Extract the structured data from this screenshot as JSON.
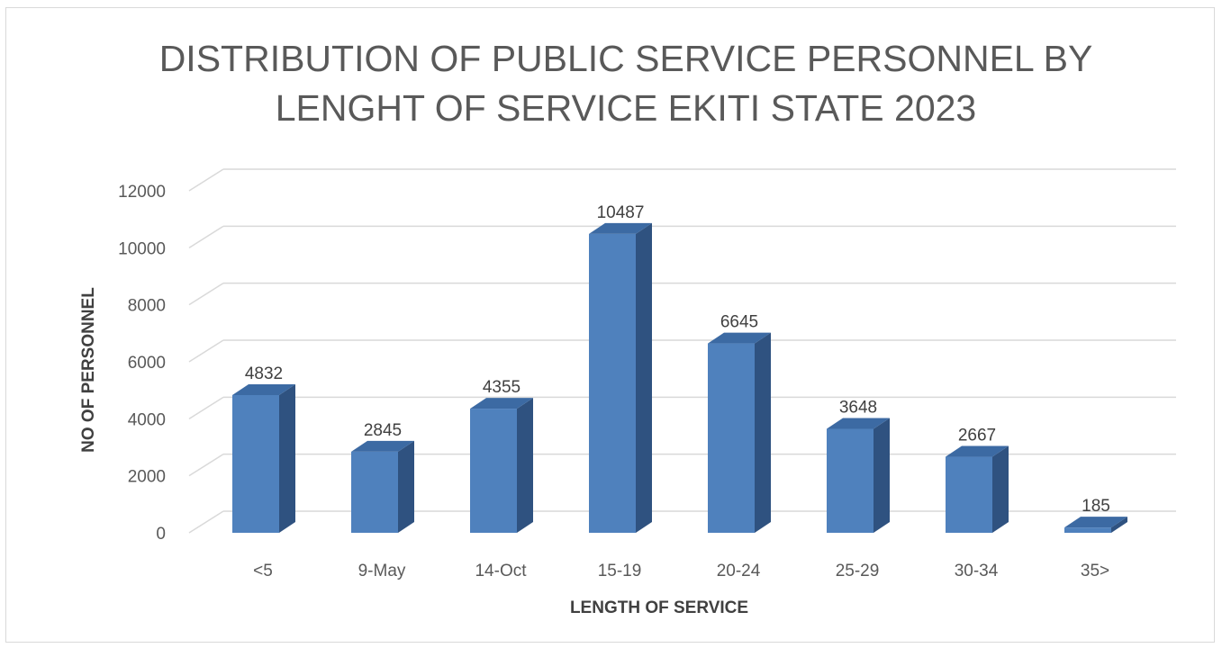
{
  "chart_data": {
    "type": "bar",
    "title_lines": [
      "DISTRIBUTION OF PUBLIC SERVICE PERSONNEL BY",
      "LENGHT OF SERVICE EKITI STATE 2023"
    ],
    "xlabel": "LENGTH OF SERVICE",
    "ylabel": "NO OF PERSONNEL",
    "categories": [
      "<5",
      "9-May",
      "14-Oct",
      "15-19",
      "20-24",
      "25-29",
      "30-34",
      "35>"
    ],
    "values": [
      4832,
      2845,
      4355,
      10487,
      6645,
      3648,
      2667,
      185
    ],
    "ylim": [
      0,
      12000
    ],
    "yticks": [
      0,
      2000,
      4000,
      6000,
      8000,
      10000,
      12000
    ],
    "grid": true,
    "legend": "none",
    "style": "3d-column",
    "colors": {
      "bar_front": "#4f81bd",
      "bar_side": "#2f5280",
      "bar_top": "#3c6aa3",
      "grid": "#d9d9d9"
    }
  }
}
